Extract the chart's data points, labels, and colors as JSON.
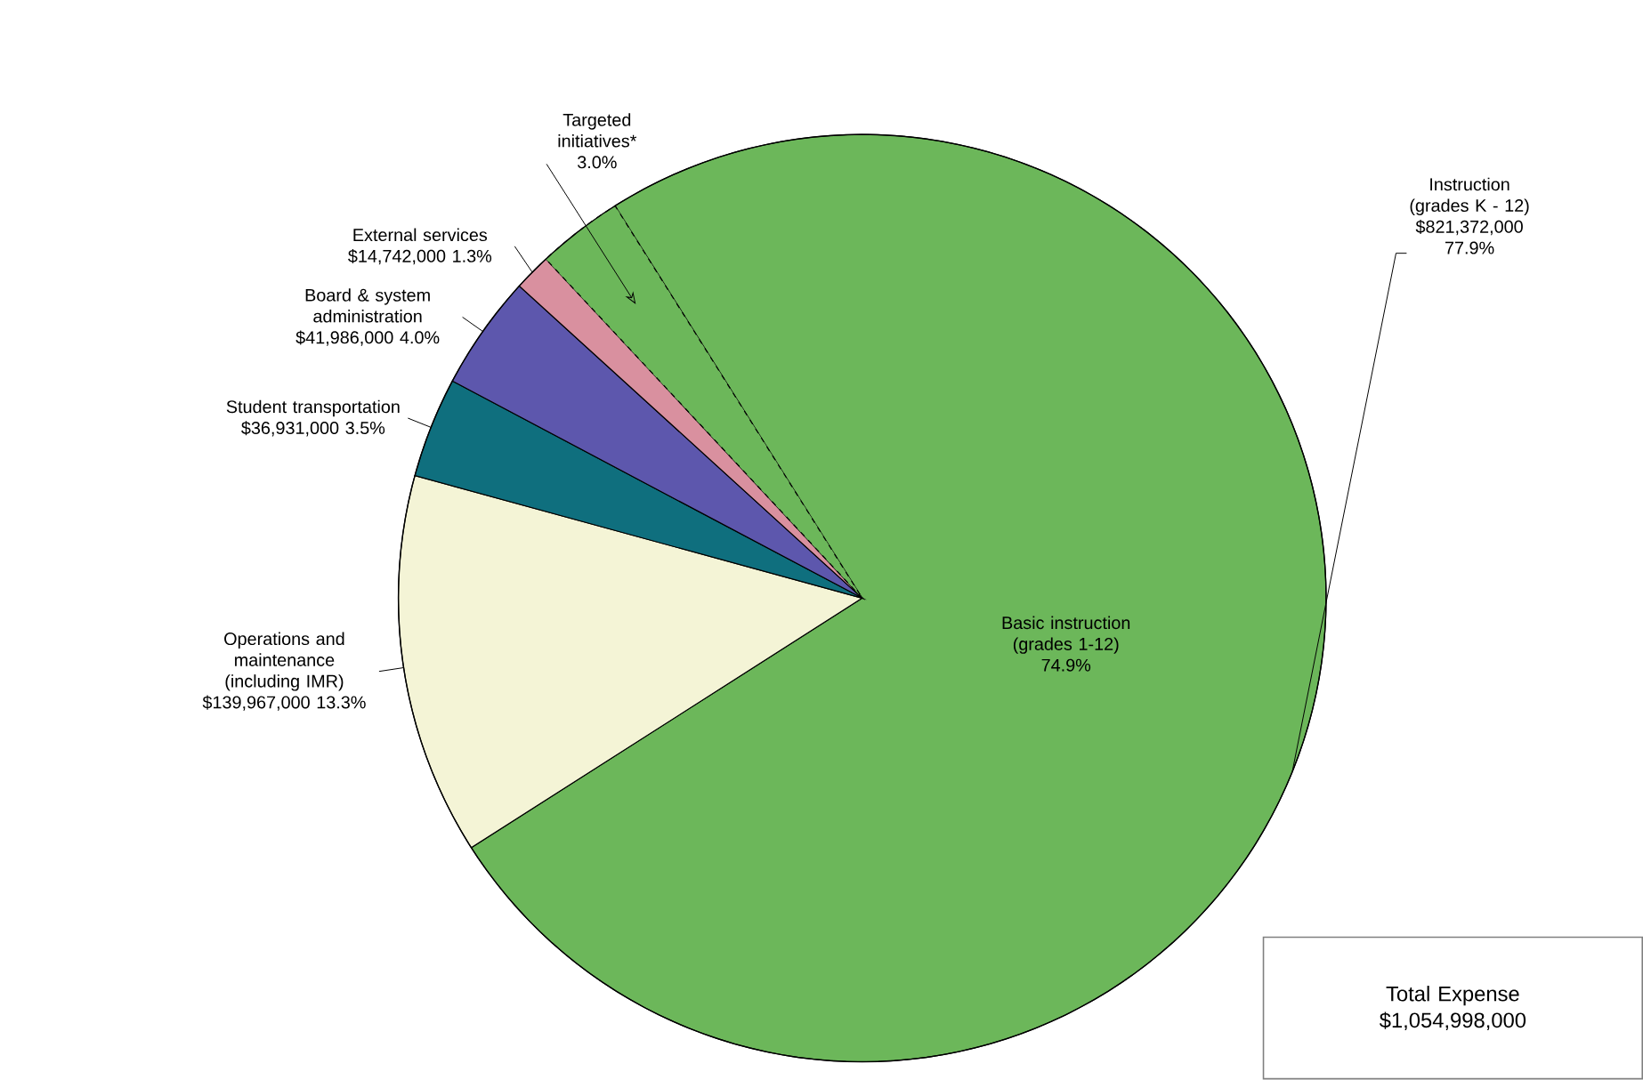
{
  "chart_data": {
    "type": "pie",
    "categories": [
      "Targeted initiatives*",
      "Basic instruction (grades 1-12)",
      "Operations and maintenance (including IMR)",
      "Student transportation",
      "Board & system administration",
      "External services"
    ],
    "values": [
      3.0,
      74.9,
      13.3,
      3.5,
      4.0,
      1.3
    ],
    "colors": [
      "#6cb75a",
      "#6cb75a",
      "#f4f4d6",
      "#0f6f7e",
      "#5d57ad",
      "#d9909f"
    ],
    "value_labels": [
      "3.0%",
      "74.9%",
      "$139,967,000 13.3%",
      "$36,931,000 3.5%",
      "$41,986,000 4.0%",
      "$14,742,000 1.3%"
    ],
    "annotations": [
      "Instruction (grades K - 12) $821,372,000 77.9%",
      "Total Expense $1,054,998,000"
    ]
  }
}
